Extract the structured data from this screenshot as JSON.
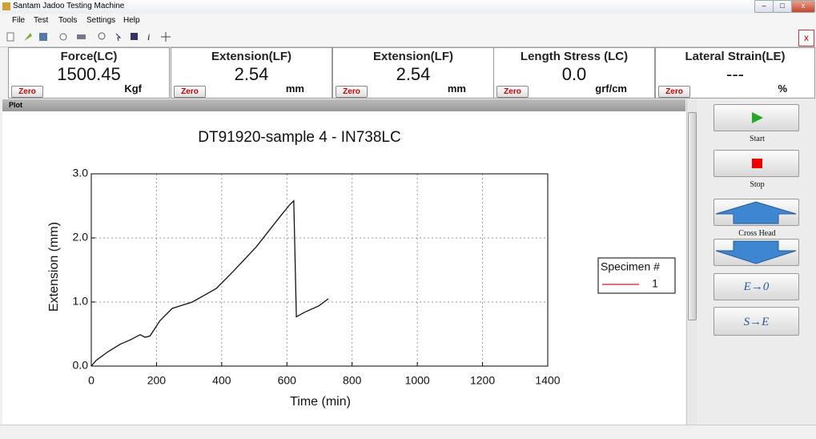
{
  "window_title": "Santam Jadoo Testing Machine",
  "menu": [
    "File",
    "Test",
    "Tools",
    "Settings",
    "Help"
  ],
  "close_button": "x",
  "readouts": [
    {
      "label": "Force(LC)",
      "value": "1500.45",
      "unit": "Kgf",
      "button": "Zero"
    },
    {
      "label": "Extension(LF)",
      "value": "2.54",
      "unit": "mm",
      "button": "Zero"
    },
    {
      "label": "Extension(LF)",
      "value": "2.54",
      "unit": "mm",
      "button": "Zero"
    },
    {
      "label": "Length Stress (LC)",
      "value": "0.0",
      "unit": "grf/cm",
      "button": "Zero"
    },
    {
      "label": "Lateral Strain(LE)",
      "value": "---",
      "unit": "%",
      "button": "Zero"
    }
  ],
  "plot_header": "Plot",
  "side_buttons": {
    "start": "Start",
    "stop": "Stop",
    "cross_head": "Cross Head",
    "e_zero": "E→0",
    "s_e": "S→E"
  },
  "chart_data": {
    "type": "line",
    "title": "DT91920-sample 4 - IN738LC",
    "xlabel": "Time (min)",
    "ylabel": "Extension (mm)",
    "xlim": [
      0,
      1400
    ],
    "ylim": [
      0,
      3
    ],
    "xticks": [
      0,
      200,
      400,
      600,
      800,
      1000,
      1200,
      1400
    ],
    "yticks": [
      {
        "value": 0,
        "label": "0.0"
      },
      {
        "value": 1,
        "label": "1.0"
      },
      {
        "value": 2,
        "label": "2.0"
      },
      {
        "value": 3,
        "label": "3.0"
      }
    ],
    "grid": true,
    "legend_title": "Specimen #",
    "legend_color": "#e04040",
    "series": [
      {
        "name": "1",
        "color": "#111111",
        "x": [
          0,
          15,
          50,
          88,
          120,
          150,
          165,
          180,
          211,
          248,
          310,
          383,
          432,
          506,
          580,
          609,
          621,
          629,
          654,
          698,
          727
        ],
        "values": [
          0,
          0.09,
          0.22,
          0.34,
          0.41,
          0.49,
          0.45,
          0.47,
          0.71,
          0.9,
          1.0,
          1.21,
          1.46,
          1.86,
          2.34,
          2.52,
          2.58,
          0.77,
          0.84,
          0.94,
          1.05
        ]
      }
    ]
  }
}
